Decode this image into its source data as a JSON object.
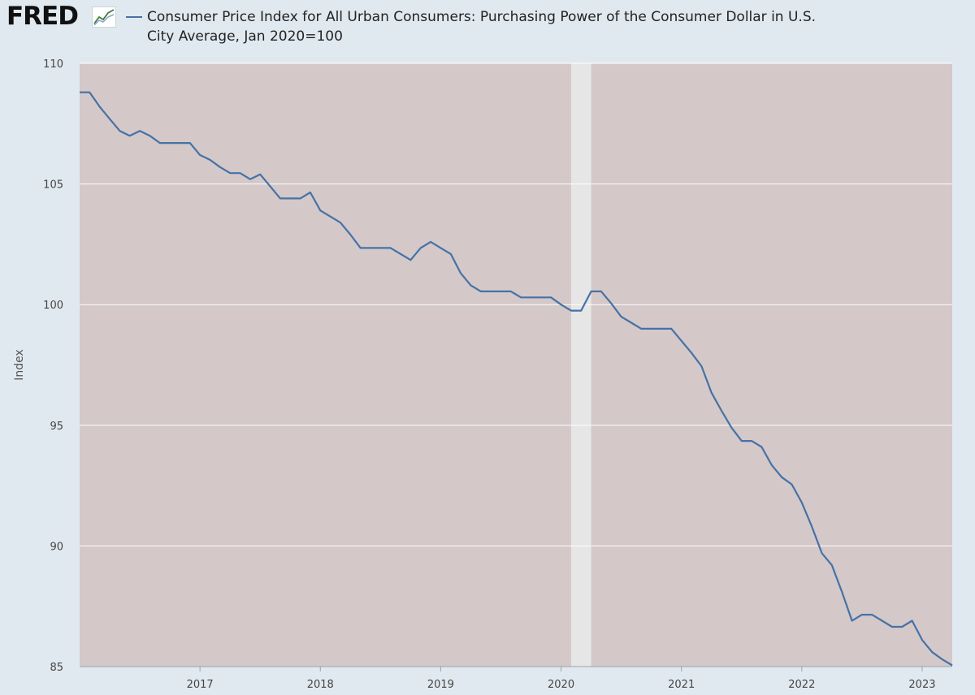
{
  "logo": {
    "text": "FRED",
    "icon": "line-chart-icon"
  },
  "colors": {
    "series": "#4572a7",
    "plot_bg": "#d4c8c8",
    "recession": "#e6e6e6",
    "gridline": "#ffffff",
    "page_bg": "#e1e9f0"
  },
  "chart_data": {
    "type": "line",
    "title": "Consumer Price Index for All Urban Consumers: Purchasing Power of the Consumer Dollar in U.S. City Average, Jan 2020=100",
    "title_lines": [
      "Consumer Price Index for All Urban Consumers: Purchasing Power of the Consumer Dollar in U.S.",
      "City Average, Jan 2020=100"
    ],
    "xlabel": "",
    "ylabel": "Index",
    "xlim": [
      "2016-01",
      "2023-04"
    ],
    "ylim": [
      85,
      110
    ],
    "yticks": [
      85,
      90,
      95,
      100,
      105,
      110
    ],
    "xticks": [
      "2017",
      "2018",
      "2019",
      "2020",
      "2021",
      "2022",
      "2023"
    ],
    "grid": true,
    "recession_shading": [
      {
        "start": "2020-02",
        "end": "2020-04"
      }
    ],
    "series": [
      {
        "name": "Consumer Price Index for All Urban Consumers: Purchasing Power of the Consumer Dollar in U.S. City Average",
        "x": [
          "2016-01",
          "2016-02",
          "2016-03",
          "2016-04",
          "2016-05",
          "2016-06",
          "2016-07",
          "2016-08",
          "2016-09",
          "2016-10",
          "2016-11",
          "2016-12",
          "2017-01",
          "2017-02",
          "2017-03",
          "2017-04",
          "2017-05",
          "2017-06",
          "2017-07",
          "2017-08",
          "2017-09",
          "2017-10",
          "2017-11",
          "2017-12",
          "2018-01",
          "2018-02",
          "2018-03",
          "2018-04",
          "2018-05",
          "2018-06",
          "2018-07",
          "2018-08",
          "2018-09",
          "2018-10",
          "2018-11",
          "2018-12",
          "2019-01",
          "2019-02",
          "2019-03",
          "2019-04",
          "2019-05",
          "2019-06",
          "2019-07",
          "2019-08",
          "2019-09",
          "2019-10",
          "2019-11",
          "2019-12",
          "2020-01",
          "2020-02",
          "2020-03",
          "2020-04",
          "2020-05",
          "2020-06",
          "2020-07",
          "2020-08",
          "2020-09",
          "2020-10",
          "2020-11",
          "2020-12",
          "2021-01",
          "2021-02",
          "2021-03",
          "2021-04",
          "2021-05",
          "2021-06",
          "2021-07",
          "2021-08",
          "2021-09",
          "2021-10",
          "2021-11",
          "2021-12",
          "2022-01",
          "2022-02",
          "2022-03",
          "2022-04",
          "2022-05",
          "2022-06",
          "2022-07",
          "2022-08",
          "2022-09",
          "2022-10",
          "2022-11",
          "2022-12",
          "2023-01",
          "2023-02",
          "2023-03",
          "2023-04"
        ],
        "values": [
          108.8,
          108.8,
          108.2,
          107.7,
          107.2,
          107.0,
          107.2,
          107.0,
          106.7,
          106.7,
          106.7,
          106.7,
          106.2,
          106.0,
          105.7,
          105.45,
          105.45,
          105.2,
          105.4,
          104.9,
          104.4,
          104.4,
          104.4,
          104.65,
          103.9,
          103.65,
          103.4,
          102.9,
          102.35,
          102.35,
          102.35,
          102.35,
          102.1,
          101.85,
          102.35,
          102.6,
          102.35,
          102.1,
          101.3,
          100.8,
          100.55,
          100.55,
          100.55,
          100.55,
          100.3,
          100.3,
          100.3,
          100.3,
          100.0,
          99.75,
          99.75,
          100.55,
          100.55,
          100.05,
          99.5,
          99.25,
          99.0,
          99.0,
          99.0,
          99.0,
          98.5,
          98.0,
          97.45,
          96.35,
          95.6,
          94.9,
          94.35,
          94.35,
          94.1,
          93.35,
          92.85,
          92.55,
          91.8,
          90.8,
          89.7,
          89.2,
          88.1,
          86.9,
          87.15,
          87.15,
          86.9,
          86.65,
          86.65,
          86.9,
          86.1,
          85.6,
          85.3,
          85.05
        ]
      }
    ]
  }
}
